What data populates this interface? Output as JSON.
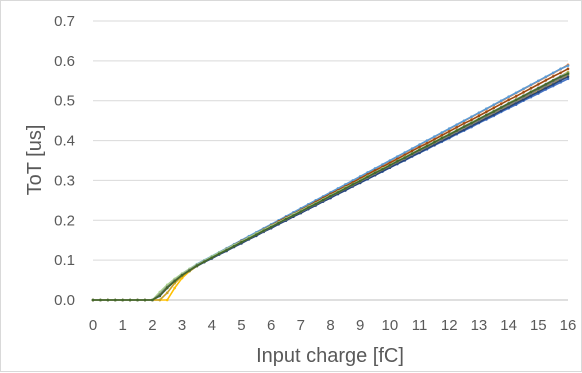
{
  "chart_data": {
    "type": "line",
    "title": "",
    "xlabel": "Input charge [fC]",
    "ylabel": "ToT [us]",
    "xlim": [
      0,
      16
    ],
    "ylim": [
      0,
      0.7
    ],
    "x_ticks": [
      "0",
      "1",
      "2",
      "3",
      "4",
      "5",
      "6",
      "7",
      "8",
      "9",
      "10",
      "11",
      "12",
      "13",
      "14",
      "15",
      "16"
    ],
    "y_ticks": [
      "0.0",
      "0.1",
      "0.2",
      "0.3",
      "0.4",
      "0.5",
      "0.6",
      "0.7"
    ],
    "grid": "horizontal",
    "legend": "none",
    "x": [
      0,
      0.25,
      0.5,
      0.75,
      1,
      1.25,
      1.5,
      1.75,
      2,
      2.25,
      2.5,
      2.75,
      3,
      3.25,
      3.5,
      3.75,
      4,
      4.25,
      4.5,
      4.75,
      5,
      5.25,
      5.5,
      5.75,
      6,
      6.25,
      6.5,
      6.75,
      7,
      7.25,
      7.5,
      7.75,
      8,
      8.25,
      8.5,
      8.75,
      9,
      9.25,
      9.5,
      9.75,
      10,
      10.25,
      10.5,
      10.75,
      11,
      11.25,
      11.5,
      11.75,
      12,
      12.25,
      12.5,
      12.75,
      13,
      13.25,
      13.5,
      13.75,
      14,
      14.25,
      14.5,
      14.75,
      15,
      15.25,
      15.5,
      15.75,
      16
    ],
    "series": [
      {
        "color": "#4472C4",
        "values": [
          0,
          0,
          0,
          0,
          0,
          0,
          0,
          0,
          0,
          0.012,
          0.032,
          0.048,
          0.062,
          0.074,
          0.086,
          0.096,
          0.105,
          0.115,
          0.125,
          0.134,
          0.143,
          0.153,
          0.163,
          0.172,
          0.182,
          0.191,
          0.2,
          0.21,
          0.219,
          0.228,
          0.238,
          0.247,
          0.256,
          0.266,
          0.275,
          0.285,
          0.294,
          0.303,
          0.313,
          0.322,
          0.332,
          0.341,
          0.35,
          0.36,
          0.369,
          0.378,
          0.388,
          0.397,
          0.406,
          0.416,
          0.425,
          0.434,
          0.444,
          0.453,
          0.462,
          0.472,
          0.481,
          0.49,
          0.5,
          0.509,
          0.518,
          0.528,
          0.537,
          0.546,
          0.555
        ]
      },
      {
        "color": "#ED7D31",
        "values": [
          0,
          0,
          0,
          0,
          0,
          0,
          0,
          0,
          0,
          0.014,
          0.035,
          0.051,
          0.065,
          0.077,
          0.089,
          0.099,
          0.109,
          0.119,
          0.129,
          0.139,
          0.149,
          0.159,
          0.169,
          0.179,
          0.189,
          0.199,
          0.209,
          0.219,
          0.229,
          0.239,
          0.249,
          0.259,
          0.269,
          0.279,
          0.289,
          0.299,
          0.309,
          0.319,
          0.329,
          0.339,
          0.349,
          0.359,
          0.369,
          0.379,
          0.389,
          0.399,
          0.409,
          0.419,
          0.429,
          0.439,
          0.449,
          0.459,
          0.469,
          0.479,
          0.489,
          0.499,
          0.509,
          0.519,
          0.529,
          0.539,
          0.549,
          0.559,
          0.569,
          0.579,
          0.59
        ]
      },
      {
        "color": "#A5A5A5",
        "values": [
          0,
          0,
          0,
          0,
          0,
          0,
          0,
          0,
          0,
          0.015,
          0.034,
          0.05,
          0.064,
          0.076,
          0.088,
          0.098,
          0.107,
          0.117,
          0.127,
          0.136,
          0.146,
          0.156,
          0.165,
          0.175,
          0.185,
          0.194,
          0.204,
          0.214,
          0.223,
          0.233,
          0.243,
          0.252,
          0.262,
          0.272,
          0.281,
          0.291,
          0.301,
          0.31,
          0.32,
          0.33,
          0.339,
          0.349,
          0.359,
          0.368,
          0.378,
          0.388,
          0.397,
          0.407,
          0.417,
          0.426,
          0.436,
          0.446,
          0.455,
          0.465,
          0.475,
          0.484,
          0.494,
          0.504,
          0.513,
          0.523,
          0.533,
          0.542,
          0.552,
          0.562,
          0.572
        ]
      },
      {
        "color": "#FFC000",
        "values": [
          0,
          0,
          0,
          0,
          0,
          0,
          0,
          0,
          0,
          0,
          0,
          0.03,
          0.055,
          0.072,
          0.085,
          0.096,
          0.106,
          0.116,
          0.126,
          0.135,
          0.145,
          0.155,
          0.164,
          0.174,
          0.183,
          0.193,
          0.202,
          0.212,
          0.221,
          0.231,
          0.24,
          0.25,
          0.259,
          0.269,
          0.278,
          0.288,
          0.297,
          0.307,
          0.316,
          0.326,
          0.335,
          0.345,
          0.354,
          0.364,
          0.373,
          0.383,
          0.392,
          0.402,
          0.411,
          0.421,
          0.43,
          0.44,
          0.449,
          0.459,
          0.468,
          0.478,
          0.487,
          0.497,
          0.506,
          0.516,
          0.525,
          0.535,
          0.544,
          0.554,
          0.563
        ]
      },
      {
        "color": "#5B9BD5",
        "values": [
          0,
          0,
          0,
          0,
          0,
          0,
          0,
          0,
          0,
          0.016,
          0.036,
          0.052,
          0.066,
          0.078,
          0.09,
          0.1,
          0.11,
          0.12,
          0.13,
          0.14,
          0.15,
          0.16,
          0.17,
          0.18,
          0.19,
          0.2,
          0.21,
          0.22,
          0.23,
          0.24,
          0.25,
          0.26,
          0.27,
          0.28,
          0.29,
          0.3,
          0.31,
          0.32,
          0.33,
          0.34,
          0.35,
          0.36,
          0.37,
          0.38,
          0.39,
          0.4,
          0.41,
          0.42,
          0.43,
          0.44,
          0.45,
          0.46,
          0.47,
          0.48,
          0.49,
          0.5,
          0.51,
          0.52,
          0.53,
          0.54,
          0.55,
          0.56,
          0.57,
          0.58,
          0.588
        ]
      },
      {
        "color": "#70AD47",
        "values": [
          0,
          0,
          0,
          0,
          0,
          0,
          0,
          0,
          0,
          0.013,
          0.033,
          0.049,
          0.063,
          0.075,
          0.087,
          0.097,
          0.107,
          0.117,
          0.126,
          0.136,
          0.146,
          0.155,
          0.165,
          0.175,
          0.184,
          0.194,
          0.203,
          0.213,
          0.223,
          0.232,
          0.242,
          0.251,
          0.261,
          0.271,
          0.28,
          0.29,
          0.3,
          0.309,
          0.319,
          0.328,
          0.338,
          0.348,
          0.357,
          0.367,
          0.376,
          0.386,
          0.396,
          0.405,
          0.415,
          0.425,
          0.434,
          0.444,
          0.453,
          0.463,
          0.473,
          0.482,
          0.492,
          0.501,
          0.511,
          0.521,
          0.53,
          0.54,
          0.55,
          0.559,
          0.569
        ]
      },
      {
        "color": "#264478",
        "values": [
          0,
          0,
          0,
          0,
          0,
          0,
          0,
          0,
          0,
          0.01,
          0.03,
          0.047,
          0.061,
          0.073,
          0.085,
          0.095,
          0.104,
          0.114,
          0.123,
          0.133,
          0.142,
          0.152,
          0.161,
          0.171,
          0.18,
          0.19,
          0.199,
          0.209,
          0.218,
          0.228,
          0.237,
          0.247,
          0.256,
          0.266,
          0.275,
          0.285,
          0.294,
          0.304,
          0.313,
          0.323,
          0.332,
          0.342,
          0.351,
          0.361,
          0.37,
          0.38,
          0.389,
          0.399,
          0.408,
          0.418,
          0.427,
          0.437,
          0.446,
          0.456,
          0.465,
          0.475,
          0.484,
          0.494,
          0.503,
          0.513,
          0.522,
          0.532,
          0.541,
          0.551,
          0.56
        ]
      },
      {
        "color": "#9E480E",
        "values": [
          0,
          0,
          0,
          0,
          0,
          0,
          0,
          0,
          0,
          0.012,
          0.031,
          0.048,
          0.063,
          0.075,
          0.087,
          0.098,
          0.108,
          0.118,
          0.128,
          0.138,
          0.148,
          0.157,
          0.167,
          0.177,
          0.187,
          0.197,
          0.207,
          0.216,
          0.226,
          0.236,
          0.246,
          0.256,
          0.266,
          0.275,
          0.285,
          0.295,
          0.305,
          0.315,
          0.325,
          0.334,
          0.344,
          0.354,
          0.364,
          0.374,
          0.384,
          0.393,
          0.403,
          0.413,
          0.423,
          0.433,
          0.443,
          0.452,
          0.462,
          0.472,
          0.482,
          0.492,
          0.502,
          0.511,
          0.521,
          0.531,
          0.541,
          0.551,
          0.561,
          0.57,
          0.58
        ]
      },
      {
        "color": "#C9A227",
        "values": [
          0,
          0,
          0,
          0,
          0,
          0,
          0,
          0,
          0,
          0,
          0.018,
          0.042,
          0.06,
          0.073,
          0.086,
          0.097,
          0.107,
          0.117,
          0.127,
          0.136,
          0.146,
          0.156,
          0.165,
          0.175,
          0.184,
          0.194,
          0.204,
          0.213,
          0.223,
          0.232,
          0.242,
          0.252,
          0.261,
          0.271,
          0.28,
          0.29,
          0.299,
          0.309,
          0.319,
          0.328,
          0.338,
          0.347,
          0.357,
          0.367,
          0.376,
          0.386,
          0.395,
          0.405,
          0.414,
          0.424,
          0.434,
          0.443,
          0.453,
          0.462,
          0.472,
          0.482,
          0.491,
          0.501,
          0.51,
          0.52,
          0.529,
          0.539,
          0.549,
          0.558,
          0.572
        ]
      },
      {
        "color": "#A9D18E",
        "values": [
          0,
          0,
          0,
          0,
          0,
          0,
          0,
          0,
          0,
          0.02,
          0.038,
          0.053,
          0.066,
          0.078,
          0.089,
          0.099,
          0.109,
          0.119,
          0.128,
          0.138,
          0.147,
          0.157,
          0.167,
          0.176,
          0.186,
          0.195,
          0.205,
          0.215,
          0.224,
          0.234,
          0.243,
          0.253,
          0.263,
          0.272,
          0.282,
          0.291,
          0.301,
          0.311,
          0.32,
          0.33,
          0.339,
          0.349,
          0.359,
          0.368,
          0.378,
          0.387,
          0.397,
          0.407,
          0.416,
          0.426,
          0.435,
          0.445,
          0.455,
          0.464,
          0.474,
          0.483,
          0.493,
          0.503,
          0.512,
          0.522,
          0.531,
          0.541,
          0.551,
          0.56,
          0.57
        ]
      },
      {
        "color": "#7F7F7F",
        "values": [
          0,
          0,
          0,
          0,
          0,
          0,
          0,
          0,
          0,
          0.014,
          0.033,
          0.049,
          0.063,
          0.075,
          0.087,
          0.097,
          0.106,
          0.116,
          0.126,
          0.135,
          0.145,
          0.154,
          0.164,
          0.173,
          0.183,
          0.193,
          0.202,
          0.212,
          0.221,
          0.231,
          0.24,
          0.25,
          0.26,
          0.269,
          0.279,
          0.288,
          0.298,
          0.307,
          0.317,
          0.327,
          0.336,
          0.346,
          0.355,
          0.365,
          0.374,
          0.384,
          0.394,
          0.403,
          0.413,
          0.422,
          0.432,
          0.441,
          0.451,
          0.461,
          0.47,
          0.48,
          0.489,
          0.499,
          0.508,
          0.518,
          0.528,
          0.537,
          0.547,
          0.556,
          0.566
        ]
      },
      {
        "color": "#43682B",
        "values": [
          0,
          0,
          0,
          0,
          0,
          0,
          0,
          0,
          0,
          0.011,
          0.031,
          0.047,
          0.062,
          0.074,
          0.086,
          0.096,
          0.106,
          0.116,
          0.125,
          0.135,
          0.145,
          0.154,
          0.164,
          0.174,
          0.183,
          0.193,
          0.203,
          0.212,
          0.222,
          0.232,
          0.241,
          0.251,
          0.261,
          0.27,
          0.28,
          0.29,
          0.299,
          0.309,
          0.319,
          0.328,
          0.338,
          0.348,
          0.357,
          0.367,
          0.377,
          0.386,
          0.396,
          0.406,
          0.415,
          0.425,
          0.435,
          0.444,
          0.454,
          0.464,
          0.473,
          0.483,
          0.493,
          0.502,
          0.512,
          0.522,
          0.531,
          0.541,
          0.551,
          0.56,
          0.568
        ]
      }
    ]
  }
}
